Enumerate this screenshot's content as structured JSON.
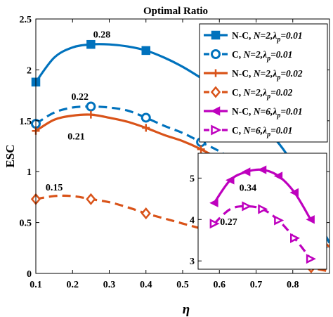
{
  "chart_data": {
    "type": "line",
    "title": "Optimal Ratio",
    "xlabel": "η",
    "ylabel": "ESC",
    "xlim": [
      0.1,
      0.9
    ],
    "ylim": [
      0,
      2.5
    ],
    "xticks": [
      "0.1",
      "0.2",
      "0.3",
      "0.4",
      "0.5",
      "0.6",
      "0.7",
      "0.8"
    ],
    "yticks": [
      "0",
      "0.5",
      "1",
      "1.5",
      "2",
      "2.5"
    ],
    "grid": false,
    "legend_placement": "top-right",
    "series": [
      {
        "name": "N-C, N=2,λp=0.01",
        "legend_parts": [
          "N-C, ",
          "N=2,",
          "λ",
          "p",
          "=0.01"
        ],
        "color": "#0072BD",
        "marker": "square",
        "dash": "solid",
        "x": [
          0.1,
          0.15,
          0.2,
          0.25,
          0.3,
          0.35,
          0.4,
          0.45,
          0.5,
          0.55,
          0.6,
          0.65,
          0.7,
          0.75,
          0.8,
          0.85,
          0.9
        ],
        "y": [
          1.88,
          2.12,
          2.22,
          2.25,
          2.25,
          2.23,
          2.19,
          2.12,
          2.03,
          1.92,
          1.8,
          1.66,
          1.51,
          1.33,
          1.07,
          0.65,
          0.3
        ],
        "markers_x": [
          0.1,
          0.25,
          0.4
        ]
      },
      {
        "name": "C, N=2,λp=0.01",
        "legend_parts": [
          "C, ",
          "N=2,",
          "λ",
          "p",
          "=0.01"
        ],
        "color": "#0072BD",
        "marker": "circle",
        "dash": "dashed",
        "x": [
          0.1,
          0.15,
          0.2,
          0.25,
          0.3,
          0.35,
          0.4,
          0.45,
          0.5,
          0.55,
          0.6,
          0.65,
          0.7,
          0.75,
          0.8,
          0.85,
          0.9
        ],
        "y": [
          1.47,
          1.58,
          1.63,
          1.64,
          1.63,
          1.6,
          1.53,
          1.45,
          1.38,
          1.29,
          1.2,
          1.08,
          0.95,
          0.8,
          0.62,
          0.42,
          0.22
        ],
        "markers_x": [
          0.1,
          0.25,
          0.4,
          0.55
        ]
      },
      {
        "name": "N-C, N=2,λp=0.02",
        "legend_parts": [
          "N-C, ",
          "N=2,",
          "λ",
          "p",
          "=0.02"
        ],
        "color": "#D95319",
        "marker": "plus",
        "dash": "solid",
        "x": [
          0.1,
          0.15,
          0.2,
          0.25,
          0.3,
          0.35,
          0.4,
          0.45,
          0.5,
          0.55,
          0.6,
          0.65,
          0.7,
          0.75,
          0.8,
          0.85,
          0.9
        ],
        "y": [
          1.4,
          1.51,
          1.55,
          1.56,
          1.53,
          1.49,
          1.43,
          1.36,
          1.3,
          1.22,
          1.12,
          1.0,
          0.88,
          0.74,
          0.58,
          0.42,
          0.26
        ],
        "markers_x": [
          0.1,
          0.25,
          0.4,
          0.55
        ]
      },
      {
        "name": "C, N=2,λp=0.02",
        "legend_parts": [
          "C, ",
          "N=2,",
          "λ",
          "p",
          "=0.02"
        ],
        "color": "#D95319",
        "marker": "diamond",
        "dash": "dashed",
        "x": [
          0.1,
          0.15,
          0.2,
          0.25,
          0.3,
          0.35,
          0.4,
          0.45,
          0.5,
          0.55,
          0.6,
          0.65,
          0.7,
          0.75,
          0.8,
          0.85,
          0.9
        ],
        "y": [
          0.73,
          0.76,
          0.76,
          0.73,
          0.7,
          0.65,
          0.59,
          0.54,
          0.49,
          0.44,
          0.38,
          0.33,
          0.27,
          0.21,
          0.15,
          0.06,
          0.02
        ],
        "markers_x": [
          0.1,
          0.25,
          0.4,
          0.85
        ]
      }
    ],
    "annotations": [
      {
        "text": "0.28",
        "x": 0.28,
        "y": 2.35
      },
      {
        "text": "0.22",
        "x": 0.22,
        "y": 1.74
      },
      {
        "text": "0.21",
        "x": 0.21,
        "y": 1.35
      },
      {
        "text": "0.15",
        "x": 0.15,
        "y": 0.85
      }
    ],
    "inset": {
      "xlim": [
        0.5,
        0.9
      ],
      "ylim": [
        2.8,
        5.6
      ],
      "yticks": [
        "3",
        "4",
        "5"
      ],
      "series": [
        {
          "name": "N-C, N=6,λp=0.01",
          "legend_parts": [
            "N-C, ",
            "N=6,",
            "λ",
            "p",
            "=0.01"
          ],
          "color": "#BE00BE",
          "marker": "triangle-left",
          "dash": "solid",
          "x": [
            0.55,
            0.6,
            0.65,
            0.7,
            0.75,
            0.8,
            0.85
          ],
          "y": [
            4.4,
            4.95,
            5.15,
            5.2,
            5.05,
            4.65,
            4.0
          ],
          "markers_x": [
            0.55,
            0.6,
            0.65,
            0.7,
            0.75,
            0.8,
            0.85
          ]
        },
        {
          "name": "C, N=6,λp=0.01",
          "legend_parts": [
            "C, ",
            "N=6,",
            "λ",
            "p",
            "=0.01"
          ],
          "color": "#BE00BE",
          "marker": "triangle-right",
          "dash": "dashed",
          "x": [
            0.55,
            0.6,
            0.65,
            0.7,
            0.75,
            0.8,
            0.85
          ],
          "y": [
            3.9,
            4.25,
            4.32,
            4.25,
            3.98,
            3.55,
            3.05
          ],
          "markers_x": [
            0.55,
            0.65,
            0.7,
            0.75,
            0.8,
            0.85
          ]
        }
      ],
      "annotations": [
        {
          "text": "0.34",
          "x": 0.655,
          "y": 4.78
        },
        {
          "text": "0.27",
          "x": 0.595,
          "y": 3.95
        }
      ]
    }
  }
}
